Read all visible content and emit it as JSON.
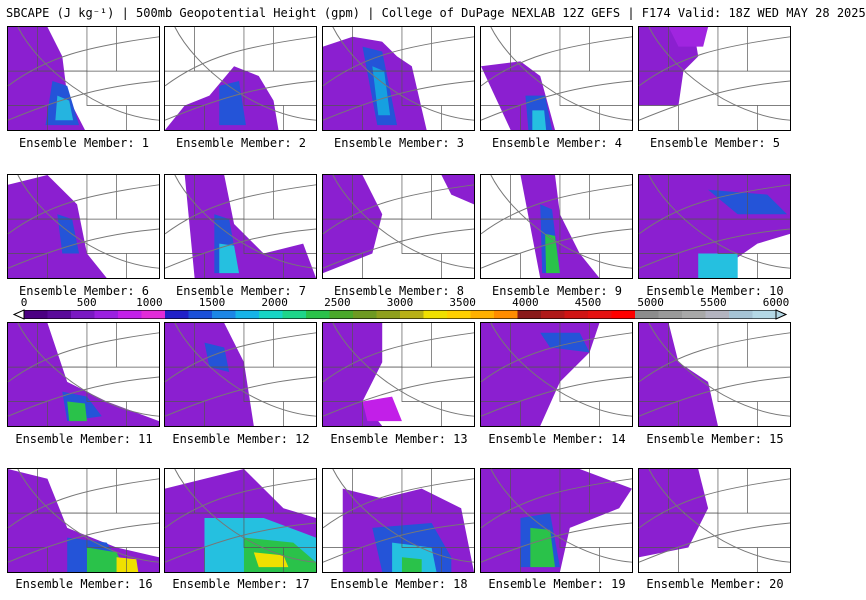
{
  "title": "SBCAPE (J kg⁻¹) | 500mb Geopotential Height (gpm) | College of DuPage NEXLAB 12Z GEFS | F174 Valid: 18Z WED MAY 28 2025",
  "colorbar": {
    "ticks": [
      "0",
      "500",
      "1000",
      "1500",
      "2000",
      "2500",
      "3000",
      "3500",
      "4000",
      "4500",
      "5000",
      "5500",
      "6000"
    ],
    "colors": [
      "#4b0082",
      "#5a0a9a",
      "#7a18c2",
      "#9b1fe0",
      "#c21fe8",
      "#e22bd8",
      "#2020c8",
      "#1a4fd8",
      "#1c86e6",
      "#16b4e8",
      "#15d6c6",
      "#1ed68a",
      "#2ac24a",
      "#4aa82a",
      "#6e9a22",
      "#8fa01e",
      "#b8b016",
      "#f0e000",
      "#ffd000",
      "#ffb000",
      "#ff8c00",
      "#8a1a1a",
      "#b01818",
      "#d01414",
      "#e61010",
      "#ff0000",
      "#8c8c8c",
      "#9a9a9a",
      "#a8a8a8",
      "#b4b4c0",
      "#a6c4d6",
      "#b4d8e6"
    ]
  },
  "members": [
    {
      "label": "Ensemble Member: 1"
    },
    {
      "label": "Ensemble Member: 2"
    },
    {
      "label": "Ensemble Member: 3"
    },
    {
      "label": "Ensemble Member: 4"
    },
    {
      "label": "Ensemble Member: 5"
    },
    {
      "label": "Ensemble Member: 6"
    },
    {
      "label": "Ensemble Member: 7"
    },
    {
      "label": "Ensemble Member: 8"
    },
    {
      "label": "Ensemble Member: 9"
    },
    {
      "label": "Ensemble Member: 10"
    },
    {
      "label": "Ensemble Member: 11"
    },
    {
      "label": "Ensemble Member: 12"
    },
    {
      "label": "Ensemble Member: 13"
    },
    {
      "label": "Ensemble Member: 14"
    },
    {
      "label": "Ensemble Member: 15"
    },
    {
      "label": "Ensemble Member: 16"
    },
    {
      "label": "Ensemble Member: 17"
    },
    {
      "label": "Ensemble Member: 18"
    },
    {
      "label": "Ensemble Member: 19"
    },
    {
      "label": "Ensemble Member: 20"
    }
  ]
}
